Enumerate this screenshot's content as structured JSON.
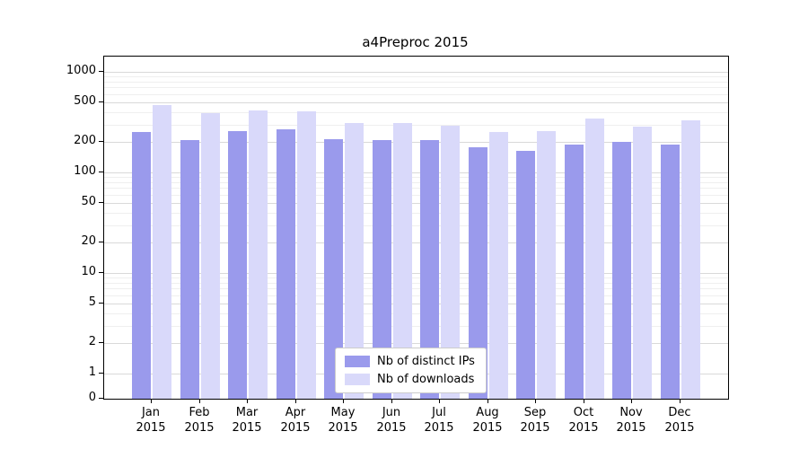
{
  "chart_data": {
    "type": "bar",
    "title": "a4Preproc 2015",
    "scale": "symlog",
    "year": "2015",
    "categories": [
      "Jan",
      "Feb",
      "Mar",
      "Apr",
      "May",
      "Jun",
      "Jul",
      "Aug",
      "Sep",
      "Oct",
      "Nov",
      "Dec"
    ],
    "yticks": [
      0,
      1,
      2,
      5,
      10,
      20,
      50,
      100,
      200,
      500,
      1000
    ],
    "ylim": [
      0,
      1000
    ],
    "grid": "on",
    "legend_position": "lower center",
    "series": [
      {
        "name": "Nb of distinct IPs",
        "color": "#9a9aec",
        "values": [
          250,
          210,
          260,
          270,
          215,
          210,
          210,
          178,
          165,
          190,
          200,
          190
        ]
      },
      {
        "name": "Nb of downloads",
        "color": "#d9d9fa",
        "values": [
          470,
          390,
          410,
          405,
          310,
          310,
          290,
          250,
          255,
          340,
          285,
          330
        ]
      }
    ]
  }
}
